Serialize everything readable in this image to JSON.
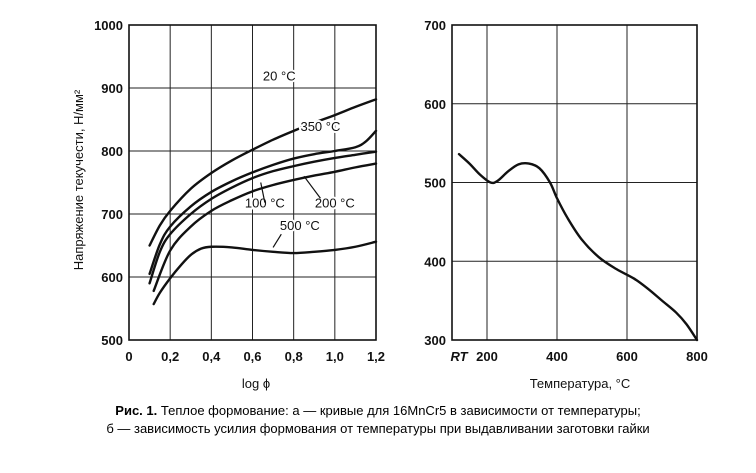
{
  "chart_data": [
    {
      "type": "line",
      "panel": "a",
      "xlabel": "log ϕ",
      "ylabel": "Напряжение текучести, Н/мм²",
      "xlim": [
        0,
        1.2
      ],
      "ylim": [
        500,
        1000
      ],
      "x_ticks": [
        "0",
        "0,2",
        "0,4",
        "0,6",
        "0,8",
        "1,0",
        "1,2"
      ],
      "y_ticks": [
        "500",
        "600",
        "700",
        "800",
        "900",
        "1000"
      ],
      "grid": true,
      "series": [
        {
          "name": "20 °C",
          "x": [
            0.1,
            0.15,
            0.2,
            0.3,
            0.4,
            0.5,
            0.6,
            0.7,
            0.8,
            0.9,
            1.0,
            1.1,
            1.2
          ],
          "y": [
            650,
            682,
            705,
            740,
            765,
            785,
            802,
            818,
            832,
            845,
            857,
            870,
            882
          ]
        },
        {
          "name": "350 °C",
          "x": [
            0.1,
            0.15,
            0.2,
            0.3,
            0.4,
            0.5,
            0.6,
            0.7,
            0.8,
            0.9,
            1.0,
            1.1,
            1.15,
            1.2
          ],
          "y": [
            605,
            652,
            680,
            712,
            735,
            752,
            766,
            778,
            788,
            795,
            800,
            806,
            815,
            832
          ]
        },
        {
          "name": "100 °C",
          "x": [
            0.1,
            0.15,
            0.2,
            0.3,
            0.4,
            0.5,
            0.6,
            0.7,
            0.8,
            0.9,
            1.0,
            1.1,
            1.2
          ],
          "y": [
            590,
            640,
            668,
            700,
            724,
            742,
            757,
            768,
            776,
            783,
            789,
            794,
            799
          ]
        },
        {
          "name": "200 °C",
          "x": [
            0.12,
            0.2,
            0.3,
            0.4,
            0.5,
            0.6,
            0.7,
            0.8,
            0.9,
            1.0,
            1.1,
            1.2
          ],
          "y": [
            578,
            642,
            680,
            705,
            722,
            736,
            746,
            754,
            761,
            767,
            774,
            780
          ]
        },
        {
          "name": "500 °C",
          "x": [
            0.12,
            0.15,
            0.2,
            0.25,
            0.3,
            0.35,
            0.4,
            0.5,
            0.6,
            0.7,
            0.8,
            0.9,
            1.0,
            1.1,
            1.2
          ],
          "y": [
            557,
            575,
            598,
            618,
            635,
            645,
            648,
            647,
            643,
            640,
            638,
            640,
            643,
            648,
            656
          ]
        }
      ],
      "curve_labels": [
        "20 °C",
        "350 °C",
        "100 °C",
        "200 °C",
        "500 °C"
      ]
    },
    {
      "type": "line",
      "panel": "b",
      "xlabel": "Температура, °С",
      "ylabel": "",
      "xlim": [
        100,
        800
      ],
      "ylim": [
        300,
        700
      ],
      "x_ticks": [
        "RT",
        "200",
        "400",
        "600",
        "800"
      ],
      "y_ticks": [
        "300",
        "400",
        "500",
        "600",
        "700"
      ],
      "grid": true,
      "series": [
        {
          "name": "",
          "x": [
            120,
            150,
            180,
            210,
            230,
            260,
            290,
            320,
            350,
            380,
            400,
            430,
            470,
            520,
            570,
            620,
            660,
            700,
            740,
            770,
            800
          ],
          "y": [
            536,
            524,
            510,
            500,
            502,
            514,
            523,
            524,
            518,
            500,
            480,
            455,
            428,
            405,
            390,
            378,
            365,
            350,
            335,
            320,
            300
          ]
        }
      ]
    }
  ],
  "caption": {
    "label": "Рис. 1.",
    "line1": "Теплое формование: a — кривые для 16MnCr5 в зависимости от температуры;",
    "line2": "б — зависимость усилия формования от температуры при выдавливании заготовки гайки"
  }
}
